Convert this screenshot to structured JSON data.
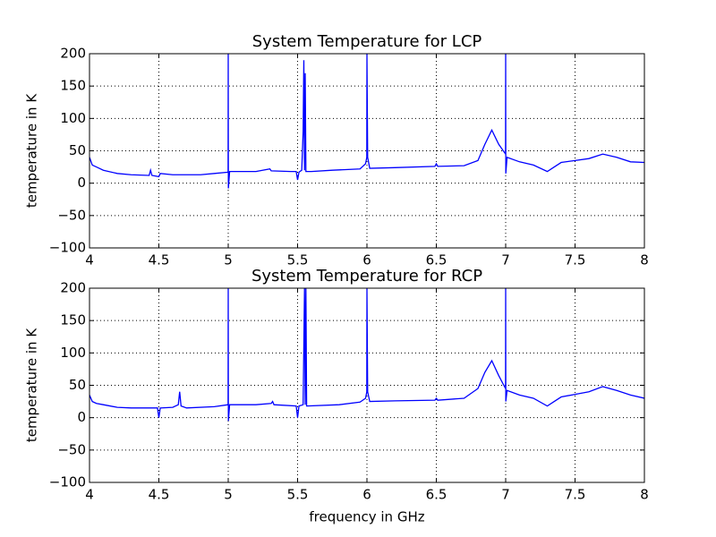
{
  "chart_data": [
    {
      "type": "line",
      "title": "System Temperature for LCP",
      "ylabel": "temperature in K",
      "x": [
        4.0,
        4.02,
        4.05,
        4.1,
        4.2,
        4.3,
        4.43,
        4.44,
        4.45,
        4.5,
        4.51,
        4.6,
        4.8,
        4.9,
        4.999,
        5.0,
        5.001,
        5.01,
        5.2,
        5.3,
        5.31,
        5.45,
        5.49,
        5.5,
        5.51,
        5.53,
        5.54,
        5.545,
        5.55,
        5.555,
        5.56,
        5.6,
        5.75,
        5.95,
        5.99,
        5.999,
        6.0,
        6.005,
        6.02,
        6.2,
        6.49,
        6.5,
        6.51,
        6.7,
        6.8,
        6.85,
        6.9,
        6.95,
        6.999,
        7.0,
        7.001,
        7.01,
        7.1,
        7.2,
        7.3,
        7.35,
        7.4,
        7.5,
        7.6,
        7.7,
        7.8,
        7.9,
        8.0
      ],
      "series": [
        {
          "color": "#0000ff",
          "values": [
            40,
            28,
            25,
            20,
            15,
            13,
            12,
            20,
            12,
            10,
            15,
            13,
            13,
            15,
            17,
            200,
            -8,
            18,
            18,
            22,
            19,
            18,
            18,
            5,
            17,
            20,
            80,
            190,
            20,
            170,
            18,
            18,
            20,
            22,
            30,
            40,
            200,
            40,
            23,
            24,
            26,
            30,
            26,
            27,
            35,
            60,
            82,
            60,
            45,
            200,
            15,
            40,
            33,
            28,
            18,
            25,
            32,
            35,
            38,
            45,
            40,
            33,
            32
          ]
        }
      ],
      "xlim": [
        4,
        8
      ],
      "ylim": [
        -100,
        200
      ],
      "xticks": [
        4,
        4.5,
        5,
        5.5,
        6,
        6.5,
        7,
        7.5,
        8
      ],
      "yticks": [
        {
          "value": -100,
          "label": "−100"
        },
        {
          "value": -50,
          "label": "−50"
        },
        0,
        50,
        100,
        150,
        200
      ],
      "grid": true
    },
    {
      "type": "line",
      "title": "System Temperature for RCP",
      "ylabel": "temperature in K",
      "xlabel": "frequency in GHz",
      "x": [
        4.0,
        4.02,
        4.05,
        4.1,
        4.2,
        4.3,
        4.4,
        4.49,
        4.5,
        4.51,
        4.6,
        4.64,
        4.65,
        4.66,
        4.7,
        4.9,
        4.999,
        5.0,
        5.001,
        5.01,
        5.2,
        5.31,
        5.32,
        5.33,
        5.49,
        5.5,
        5.51,
        5.54,
        5.55,
        5.555,
        5.56,
        5.565,
        5.57,
        5.8,
        5.95,
        5.99,
        5.999,
        6.0,
        6.005,
        6.02,
        6.2,
        6.49,
        6.5,
        6.51,
        6.7,
        6.8,
        6.85,
        6.9,
        6.95,
        6.999,
        7.0,
        7.001,
        7.01,
        7.1,
        7.2,
        7.3,
        7.35,
        7.4,
        7.5,
        7.6,
        7.7,
        7.8,
        7.9,
        8.0
      ],
      "series": [
        {
          "color": "#0000ff",
          "values": [
            35,
            25,
            22,
            20,
            16,
            15,
            15,
            15,
            0,
            15,
            16,
            20,
            40,
            18,
            15,
            17,
            20,
            200,
            -5,
            20,
            20,
            22,
            25,
            20,
            18,
            0,
            18,
            20,
            200,
            20,
            200,
            18,
            18,
            20,
            24,
            30,
            40,
            200,
            40,
            25,
            26,
            27,
            30,
            27,
            30,
            45,
            70,
            88,
            65,
            45,
            200,
            25,
            42,
            35,
            30,
            18,
            25,
            32,
            36,
            40,
            48,
            42,
            35,
            30
          ]
        }
      ],
      "xlim": [
        4,
        8
      ],
      "ylim": [
        -100,
        200
      ],
      "xticks": [
        4,
        4.5,
        5,
        5.5,
        6,
        6.5,
        7,
        7.5,
        8
      ],
      "yticks": [
        {
          "value": -100,
          "label": "−100"
        },
        {
          "value": -50,
          "label": "−50"
        },
        0,
        50,
        100,
        150,
        200
      ],
      "grid": true
    }
  ]
}
